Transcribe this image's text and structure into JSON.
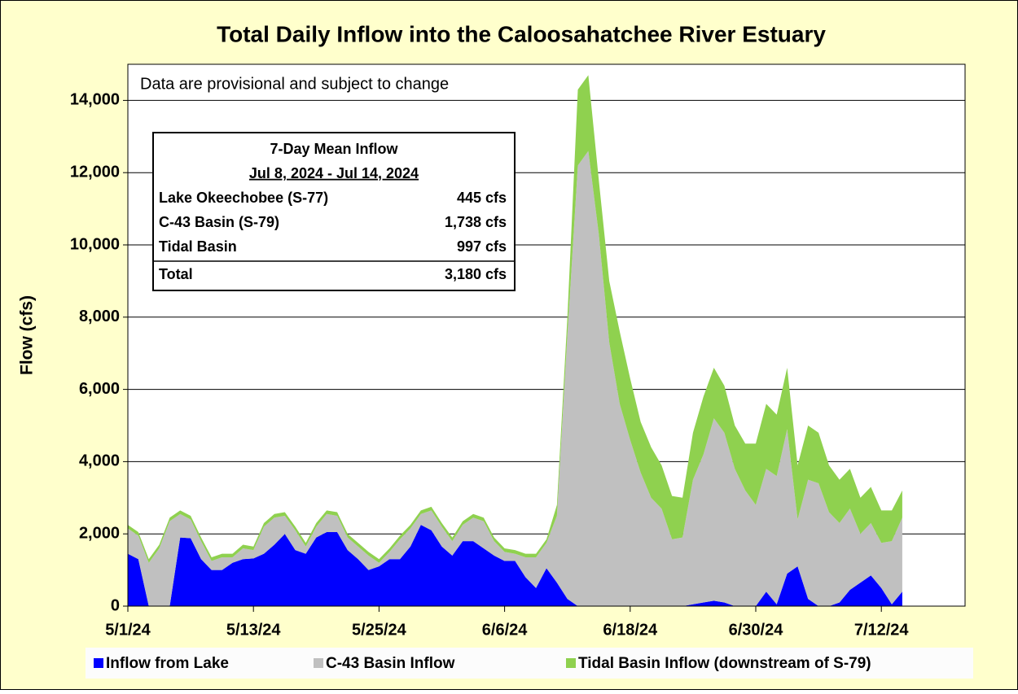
{
  "chart_data": {
    "type": "stacked_area",
    "title": "Total Daily Inflow into the Caloosahatchee River Estuary",
    "y_label": "Flow (cfs)",
    "annotation": "Data are provisional and subject to change",
    "categories": [
      "5/1/24",
      null,
      null,
      null,
      null,
      null,
      null,
      null,
      null,
      null,
      null,
      null,
      "5/13/24",
      null,
      null,
      null,
      null,
      null,
      null,
      null,
      null,
      null,
      null,
      null,
      "5/25/24",
      null,
      null,
      null,
      null,
      null,
      null,
      null,
      null,
      null,
      null,
      null,
      "6/6/24",
      null,
      null,
      null,
      null,
      null,
      null,
      null,
      null,
      null,
      null,
      null,
      "6/18/24",
      null,
      null,
      null,
      null,
      null,
      null,
      null,
      null,
      null,
      null,
      null,
      "6/30/24",
      null,
      null,
      null,
      null,
      null,
      null,
      null,
      null,
      null,
      null,
      null,
      "7/12/24",
      null,
      null,
      null,
      null,
      null,
      null,
      null,
      null
    ],
    "series": [
      {
        "name": "Inflow from Lake",
        "color": "#0000ff",
        "values": [
          1450,
          1300,
          0,
          0,
          0,
          1900,
          1880,
          1300,
          1000,
          1000,
          1200,
          1300,
          1320,
          1450,
          1700,
          2000,
          1550,
          1450,
          1900,
          2050,
          2050,
          1550,
          1300,
          1000,
          1100,
          1300,
          1300,
          1650,
          2250,
          2100,
          1650,
          1400,
          1800,
          1800,
          1600,
          1400,
          1250,
          1250,
          800,
          500,
          1050,
          650,
          200,
          0,
          0,
          0,
          0,
          0,
          0,
          0,
          0,
          0,
          0,
          0,
          50,
          100,
          150,
          100,
          0,
          0,
          0,
          400,
          50,
          900,
          1100,
          200,
          0,
          0,
          100,
          450,
          650,
          850,
          500,
          50,
          400,
          null,
          null,
          null,
          null,
          null,
          null
        ]
      },
      {
        "name": "C-43 Basin Inflow",
        "color": "#c0c0c0",
        "values": [
          700,
          650,
          1200,
          1600,
          2350,
          650,
          520,
          500,
          250,
          350,
          150,
          300,
          230,
          750,
          750,
          500,
          550,
          200,
          300,
          500,
          450,
          350,
          350,
          400,
          100,
          200,
          550,
          500,
          300,
          550,
          550,
          400,
          450,
          650,
          750,
          400,
          250,
          200,
          550,
          850,
          700,
          1850,
          7300,
          12200,
          12600,
          10300,
          7300,
          5600,
          4600,
          3700,
          3000,
          2700,
          1850,
          1900,
          3450,
          4100,
          5050,
          4700,
          3800,
          3200,
          2800,
          3400,
          3550,
          4000,
          1300,
          3300,
          3400,
          2600,
          2200,
          2250,
          1350,
          1450,
          1250,
          1750,
          2050,
          null,
          null,
          null,
          null,
          null,
          null
        ]
      },
      {
        "name": "Tidal Basin Inflow (downstream of S-79)",
        "color": "#8fd14f",
        "values": [
          100,
          100,
          100,
          100,
          100,
          100,
          100,
          100,
          100,
          100,
          100,
          100,
          100,
          100,
          100,
          100,
          100,
          100,
          100,
          100,
          100,
          100,
          100,
          100,
          100,
          100,
          100,
          100,
          100,
          100,
          100,
          100,
          100,
          100,
          100,
          100,
          100,
          100,
          100,
          100,
          100,
          300,
          500,
          2100,
          2100,
          1500,
          1700,
          2000,
          1700,
          1400,
          1400,
          1200,
          1200,
          1100,
          1300,
          1600,
          1400,
          1300,
          1200,
          1300,
          1700,
          1800,
          1700,
          1700,
          1500,
          1500,
          1400,
          1300,
          1200,
          1100,
          1000,
          1000,
          900,
          850,
          750,
          null,
          null,
          null,
          null,
          null,
          null
        ]
      }
    ],
    "ylim": [
      0,
      15000
    ],
    "yticks": [
      0,
      {
        "value": 2000,
        "label": "2,000"
      },
      {
        "value": 4000,
        "label": "4,000"
      },
      {
        "value": 6000,
        "label": "6,000"
      },
      {
        "value": 8000,
        "label": "8,000"
      },
      {
        "value": 10000,
        "label": "10,000"
      },
      {
        "value": 12000,
        "label": "12,000"
      },
      {
        "value": 14000,
        "label": "14,000"
      }
    ],
    "grid": true,
    "legend": "bottom"
  },
  "inset_table": {
    "title": "7-Day Mean Inflow",
    "subtitle": "Jul 8, 2024 - Jul 14, 2024",
    "rows": [
      [
        "Lake Okeechobee (S-77)",
        "445 cfs"
      ],
      [
        "C-43 Basin (S-79)",
        "1,738 cfs"
      ],
      [
        "Tidal Basin",
        "997 cfs"
      ]
    ],
    "total": [
      "Total",
      "3,180 cfs"
    ]
  }
}
